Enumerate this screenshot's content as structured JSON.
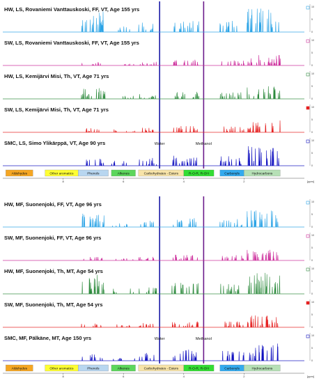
{
  "chart_data": {
    "type": "line",
    "xlabel": "[ppm]",
    "xlim": [
      10,
      0
    ],
    "x_ticks": [
      8,
      6,
      4,
      2
    ],
    "right_axis_ticks": [
      0,
      5,
      10
    ],
    "vertical_markers": [
      {
        "label": "Water",
        "x": 4.8,
        "color": "#1a1aa6"
      },
      {
        "label": "Methanol",
        "x": 3.34,
        "color": "#6b1a8a"
      }
    ],
    "regions": [
      {
        "label": "Aldehydes",
        "color": "#f5a623",
        "from": 9.9,
        "to": 9.0
      },
      {
        "label": "Other aromatics",
        "color": "#ffff33",
        "from": 8.6,
        "to": 7.5
      },
      {
        "label": "Phenols",
        "color": "#b8d6f0",
        "from": 7.5,
        "to": 6.5
      },
      {
        "label": "Alkenes",
        "color": "#5cd65c",
        "from": 6.4,
        "to": 5.6
      },
      {
        "label": "Carbohydrates - Esters",
        "color": "#f7e3a8",
        "from": 5.5,
        "to": 4.0
      },
      {
        "label": "R-O-R, R-OH",
        "color": "#33dd33",
        "from": 4.0,
        "to": 3.0
      },
      {
        "label": "Carbonyls",
        "color": "#33aaee",
        "from": 2.8,
        "to": 2.0
      },
      {
        "label": "Hydrocarbons",
        "color": "#b6e0b6",
        "from": 2.0,
        "to": 0.8
      }
    ],
    "panels": [
      {
        "spectra": [
          {
            "name": "HW, LS, Rovaniemi Vanttauskoski, FF, VT, Age 155 yrs",
            "color": "#2aa3e6",
            "amp": 1.0
          },
          {
            "name": "SW, LS, Rovaniemi Vanttauskoski, FF, VT, Age 155 yrs",
            "color": "#cc2a9a",
            "amp": 0.45
          },
          {
            "name": "HW, LS, Kemijärvi Misi, Th, VT, Age 71 yrs",
            "color": "#2e8b3e",
            "amp": 0.55
          },
          {
            "name": "SW, LS, Kemijärvi Misi, Th, VT, Age 71 yrs",
            "color": "#e52020",
            "amp": 0.5
          },
          {
            "name": "SMC, LS, Simo Ylikärppä, VT, Age 90 yrs",
            "color": "#1010c0",
            "amp": 0.85
          }
        ]
      },
      {
        "spectra": [
          {
            "name": "HW, MF, Suonenjoki, FF, VT, Age 96 yrs",
            "color": "#2aa3e6",
            "amp": 0.7
          },
          {
            "name": "SW, MF, Suonenjoki, FF, VT, Age 96 yrs",
            "color": "#cc2a9a",
            "amp": 0.45
          },
          {
            "name": "HW, MF, Suonenjoki, Th, MT, Age 54 yrs",
            "color": "#2e8b3e",
            "amp": 0.9
          },
          {
            "name": "SW, MF, Suonenjoki, Th, MT, Age 54 yrs",
            "color": "#e52020",
            "amp": 0.5
          },
          {
            "name": "SMC, MF, Pälkäne, MT, Age 150 yrs",
            "color": "#1010c0",
            "amp": 0.85
          }
        ]
      }
    ]
  }
}
